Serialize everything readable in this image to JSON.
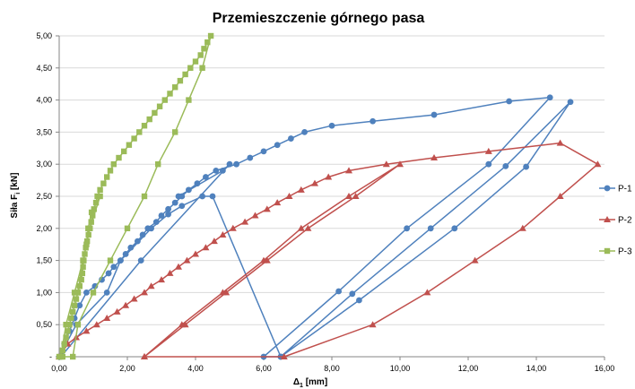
{
  "chart_data": {
    "type": "line",
    "title": "Przemieszczenie górnego pasa",
    "xlabel_main": "Δ",
    "xlabel_sub": "1",
    "xlabel_unit": " [mm]",
    "ylabel_main": "Siła F",
    "ylabel_sub": "i",
    "ylabel_unit": " [kN]",
    "xlim": [
      0,
      16
    ],
    "ylim": [
      0,
      5
    ],
    "grid": "horizontal",
    "legend_position": "right",
    "x_ticks": [
      {
        "value": 0,
        "label": "0,00"
      },
      {
        "value": 2,
        "label": "2,00"
      },
      {
        "value": 4,
        "label": "4,00"
      },
      {
        "value": 6,
        "label": "6,00"
      },
      {
        "value": 8,
        "label": "8,00"
      },
      {
        "value": 10,
        "label": "10,00"
      },
      {
        "value": 12,
        "label": "12,00"
      },
      {
        "value": 14,
        "label": "14,00"
      },
      {
        "value": 16,
        "label": "16,00"
      }
    ],
    "y_ticks": [
      {
        "value": 0,
        "label": "-"
      },
      {
        "value": 0.5,
        "label": "0,50"
      },
      {
        "value": 1,
        "label": "1,00"
      },
      {
        "value": 1.5,
        "label": "1,50"
      },
      {
        "value": 2,
        "label": "2,00"
      },
      {
        "value": 2.5,
        "label": "2,50"
      },
      {
        "value": 3,
        "label": "3,00"
      },
      {
        "value": 3.5,
        "label": "3,50"
      },
      {
        "value": 4,
        "label": "4,00"
      },
      {
        "value": 4.5,
        "label": "4,50"
      },
      {
        "value": 5,
        "label": "5,00"
      }
    ],
    "series": [
      {
        "name": "P-1",
        "color": "#4f81bd",
        "marker": "circle",
        "points": [
          [
            0,
            0
          ],
          [
            0.15,
            0.2
          ],
          [
            0.3,
            0.4
          ],
          [
            0.45,
            0.6
          ],
          [
            0.6,
            0.8
          ],
          [
            0.8,
            1.0
          ],
          [
            1.05,
            1.1
          ],
          [
            1.25,
            1.2
          ],
          [
            1.45,
            1.3
          ],
          [
            1.6,
            1.4
          ],
          [
            1.8,
            1.5
          ],
          [
            1.95,
            1.6
          ],
          [
            2.1,
            1.7
          ],
          [
            2.3,
            1.8
          ],
          [
            2.45,
            1.9
          ],
          [
            2.6,
            2.0
          ],
          [
            2.85,
            2.1
          ],
          [
            3.0,
            2.2
          ],
          [
            3.2,
            2.3
          ],
          [
            3.4,
            2.4
          ],
          [
            3.6,
            2.5
          ],
          [
            3.8,
            2.6
          ],
          [
            4.05,
            2.7
          ],
          [
            4.3,
            2.8
          ],
          [
            4.6,
            2.9
          ],
          [
            5.2,
            3.0
          ],
          [
            5.6,
            3.1
          ],
          [
            6.0,
            3.2
          ],
          [
            6.4,
            3.3
          ],
          [
            6.8,
            3.4
          ],
          [
            7.2,
            3.5
          ],
          [
            8.0,
            3.6
          ],
          [
            9.2,
            3.67
          ],
          [
            11.0,
            3.77
          ],
          [
            13.2,
            3.98
          ],
          [
            14.4,
            4.04
          ],
          [
            12.6,
            3.0
          ],
          [
            10.2,
            2.0
          ],
          [
            8.2,
            1.02
          ],
          [
            6.0,
            0.0
          ],
          [
            6.5,
            0.0
          ],
          [
            8.6,
            0.98
          ],
          [
            10.9,
            2.0
          ],
          [
            13.1,
            2.97
          ],
          [
            15.0,
            3.97
          ],
          [
            13.7,
            2.96
          ],
          [
            11.6,
            2.0
          ],
          [
            8.8,
            0.88
          ],
          [
            6.5,
            0.0
          ],
          [
            4.5,
            2.5
          ],
          [
            4.2,
            2.5
          ],
          [
            3.6,
            2.35
          ],
          [
            3.2,
            2.22
          ],
          [
            2.7,
            2.0
          ],
          [
            1.8,
            1.5
          ],
          [
            1.4,
            1.0
          ],
          [
            0.5,
            0.5
          ],
          [
            0.2,
            0.2
          ],
          [
            0.05,
            0.0
          ],
          [
            2.4,
            1.5
          ],
          [
            5.0,
            3.0
          ],
          [
            4.8,
            2.9
          ],
          [
            3.5,
            2.5
          ]
        ]
      },
      {
        "name": "P-2",
        "color": "#c0504d",
        "marker": "triangle",
        "points": [
          [
            0,
            0
          ],
          [
            0.25,
            0.2
          ],
          [
            0.5,
            0.3
          ],
          [
            0.8,
            0.4
          ],
          [
            1.1,
            0.5
          ],
          [
            1.4,
            0.6
          ],
          [
            1.7,
            0.7
          ],
          [
            1.95,
            0.8
          ],
          [
            2.2,
            0.9
          ],
          [
            2.5,
            1.0
          ],
          [
            2.7,
            1.1
          ],
          [
            3.0,
            1.2
          ],
          [
            3.25,
            1.3
          ],
          [
            3.5,
            1.4
          ],
          [
            3.75,
            1.5
          ],
          [
            4.0,
            1.6
          ],
          [
            4.3,
            1.7
          ],
          [
            4.55,
            1.8
          ],
          [
            4.8,
            1.9
          ],
          [
            5.1,
            2.0
          ],
          [
            5.45,
            2.1
          ],
          [
            5.75,
            2.2
          ],
          [
            6.1,
            2.3
          ],
          [
            6.4,
            2.4
          ],
          [
            6.75,
            2.5
          ],
          [
            7.1,
            2.6
          ],
          [
            7.5,
            2.7
          ],
          [
            7.9,
            2.8
          ],
          [
            8.5,
            2.9
          ],
          [
            9.6,
            3.0
          ],
          [
            11.0,
            3.1
          ],
          [
            12.6,
            3.2
          ],
          [
            14.7,
            3.33
          ],
          [
            15.8,
            3.0
          ],
          [
            14.7,
            2.5
          ],
          [
            13.6,
            2.0
          ],
          [
            12.2,
            1.5
          ],
          [
            10.8,
            1.0
          ],
          [
            9.2,
            0.5
          ],
          [
            6.6,
            0.0
          ],
          [
            2.5,
            0.0
          ],
          [
            3.6,
            0.5
          ],
          [
            4.8,
            1.0
          ],
          [
            6.0,
            1.5
          ],
          [
            7.1,
            2.0
          ],
          [
            8.5,
            2.5
          ],
          [
            10.0,
            3.0
          ],
          [
            8.7,
            2.5
          ],
          [
            7.3,
            2.0
          ],
          [
            6.1,
            1.5
          ],
          [
            4.9,
            1.0
          ],
          [
            3.7,
            0.5
          ],
          [
            2.5,
            0.0
          ]
        ]
      },
      {
        "name": "P-3",
        "color": "#9bbb59",
        "marker": "square",
        "points": [
          [
            0,
            0
          ],
          [
            0.1,
            0.1
          ],
          [
            0.15,
            0.2
          ],
          [
            0.2,
            0.3
          ],
          [
            0.25,
            0.4
          ],
          [
            0.3,
            0.5
          ],
          [
            0.35,
            0.6
          ],
          [
            0.4,
            0.7
          ],
          [
            0.45,
            0.8
          ],
          [
            0.5,
            0.9
          ],
          [
            0.55,
            1.0
          ],
          [
            0.6,
            1.1
          ],
          [
            0.65,
            1.2
          ],
          [
            0.68,
            1.3
          ],
          [
            0.7,
            1.4
          ],
          [
            0.72,
            1.5
          ],
          [
            0.75,
            1.6
          ],
          [
            0.78,
            1.7
          ],
          [
            0.82,
            1.8
          ],
          [
            0.86,
            1.9
          ],
          [
            0.9,
            2.0
          ],
          [
            0.94,
            2.1
          ],
          [
            0.98,
            2.2
          ],
          [
            1.02,
            2.3
          ],
          [
            1.08,
            2.4
          ],
          [
            1.12,
            2.5
          ],
          [
            1.2,
            2.6
          ],
          [
            1.3,
            2.7
          ],
          [
            1.4,
            2.8
          ],
          [
            1.5,
            2.9
          ],
          [
            1.6,
            3.0
          ],
          [
            1.75,
            3.1
          ],
          [
            1.9,
            3.2
          ],
          [
            2.05,
            3.3
          ],
          [
            2.2,
            3.4
          ],
          [
            2.35,
            3.5
          ],
          [
            2.5,
            3.6
          ],
          [
            2.65,
            3.7
          ],
          [
            2.8,
            3.8
          ],
          [
            2.95,
            3.9
          ],
          [
            3.1,
            4.0
          ],
          [
            3.25,
            4.1
          ],
          [
            3.4,
            4.2
          ],
          [
            3.55,
            4.3
          ],
          [
            3.7,
            4.4
          ],
          [
            3.85,
            4.5
          ],
          [
            4.0,
            4.6
          ],
          [
            4.15,
            4.7
          ],
          [
            4.25,
            4.8
          ],
          [
            4.35,
            4.9
          ],
          [
            4.45,
            5.0
          ],
          [
            4.2,
            4.5
          ],
          [
            3.8,
            4.0
          ],
          [
            3.4,
            3.5
          ],
          [
            2.9,
            3.0
          ],
          [
            2.5,
            2.5
          ],
          [
            2.0,
            2.0
          ],
          [
            1.5,
            1.5
          ],
          [
            1.0,
            1.0
          ],
          [
            0.55,
            0.5
          ],
          [
            0.4,
            0.0
          ],
          [
            0.1,
            0.0
          ],
          [
            0.3,
            0.5
          ],
          [
            0.55,
            1.0
          ],
          [
            0.7,
            1.5
          ],
          [
            0.8,
            1.75
          ],
          [
            0.85,
            2.0
          ],
          [
            0.95,
            2.25
          ],
          [
            1.2,
            2.5
          ],
          [
            0.9,
            2.0
          ],
          [
            0.7,
            1.5
          ],
          [
            0.45,
            1.0
          ],
          [
            0.2,
            0.5
          ],
          [
            0.05,
            0.0
          ]
        ]
      }
    ]
  }
}
